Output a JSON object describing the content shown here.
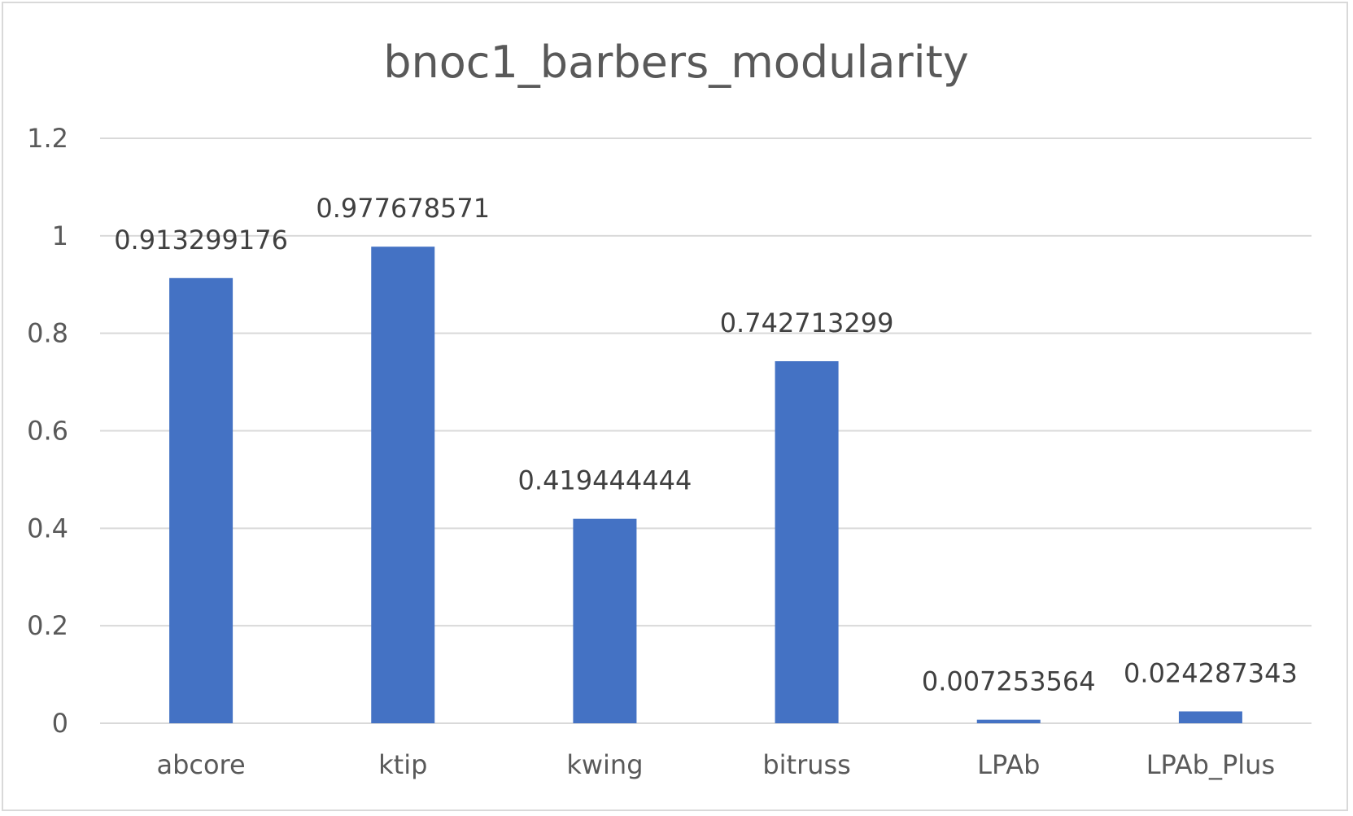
{
  "chart_data": {
    "type": "bar",
    "title": "bnoc1_barbers_modularity",
    "categories": [
      "abcore",
      "ktip",
      "kwing",
      "bitruss",
      "LPAb",
      "LPAb_Plus"
    ],
    "values": [
      0.913299176,
      0.977678571,
      0.419444444,
      0.742713299,
      0.007253564,
      0.024287343
    ],
    "data_labels": [
      "0.913299176",
      "0.977678571",
      "0.419444444",
      "0.742713299",
      "0.007253564",
      "0.024287343"
    ],
    "ylim": [
      0,
      1.2
    ],
    "yticks": [
      "0",
      "0.2",
      "0.4",
      "0.6",
      "0.8",
      "1",
      "1.2"
    ],
    "grid": true,
    "legend": "none",
    "bar_color": "#4472C4"
  }
}
